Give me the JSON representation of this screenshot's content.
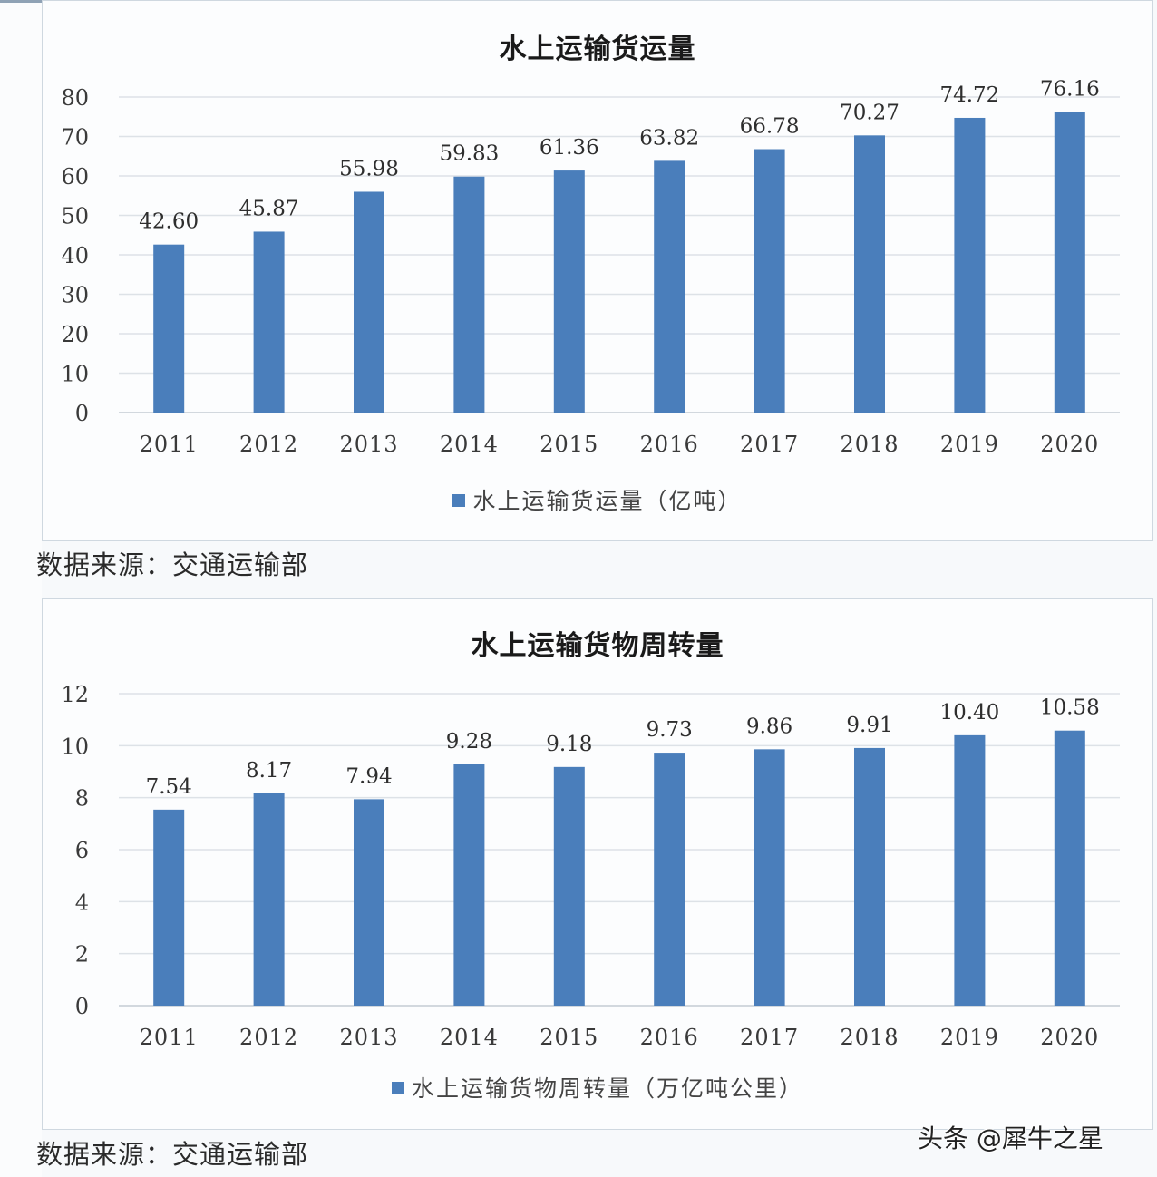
{
  "chart_data": [
    {
      "type": "bar",
      "title": "水上运输货运量",
      "categories": [
        "2011",
        "2012",
        "2013",
        "2014",
        "2015",
        "2016",
        "2017",
        "2018",
        "2019",
        "2020"
      ],
      "series": [
        {
          "name": "水上运输货运量（亿吨）",
          "values": [
            42.6,
            45.87,
            55.98,
            59.83,
            61.36,
            63.82,
            66.78,
            70.27,
            74.72,
            76.16
          ],
          "labels": [
            "42.60",
            "45.87",
            "55.98",
            "59.83",
            "61.36",
            "63.82",
            "66.78",
            "70.27",
            "74.72",
            "76.16"
          ]
        }
      ],
      "xlabel": "",
      "ylabel": "",
      "ylim": [
        0,
        80
      ],
      "yticks": [
        "0",
        "10",
        "20",
        "30",
        "40",
        "50",
        "60",
        "70",
        "80"
      ],
      "grid": true,
      "legend_position": "bottom",
      "bar_color": "#4a7ebb"
    },
    {
      "type": "bar",
      "title": "水上运输货物周转量",
      "categories": [
        "2011",
        "2012",
        "2013",
        "2014",
        "2015",
        "2016",
        "2017",
        "2018",
        "2019",
        "2020"
      ],
      "series": [
        {
          "name": "水上运输货物周转量（万亿吨公里）",
          "values": [
            7.54,
            8.17,
            7.94,
            9.28,
            9.18,
            9.73,
            9.86,
            9.91,
            10.4,
            10.58
          ],
          "labels": [
            "7.54",
            "8.17",
            "7.94",
            "9.28",
            "9.18",
            "9.73",
            "9.86",
            "9.91",
            "10.40",
            "10.58"
          ]
        }
      ],
      "xlabel": "",
      "ylabel": "",
      "ylim": [
        0,
        12
      ],
      "yticks": [
        "0",
        "2",
        "4",
        "6",
        "8",
        "10",
        "12"
      ],
      "grid": true,
      "legend_position": "bottom",
      "bar_color": "#4a7ebb"
    }
  ],
  "charts": {
    "top": {
      "title": "水上运输货运量",
      "legend": "水上运输货运量（亿吨）",
      "source": "数据来源：交通运输部"
    },
    "bottom": {
      "title": "水上运输货物周转量",
      "legend": "水上运输货物周转量（万亿吨公里）",
      "source": "数据来源：交通运输部"
    }
  },
  "watermark": "头条 @犀牛之星"
}
